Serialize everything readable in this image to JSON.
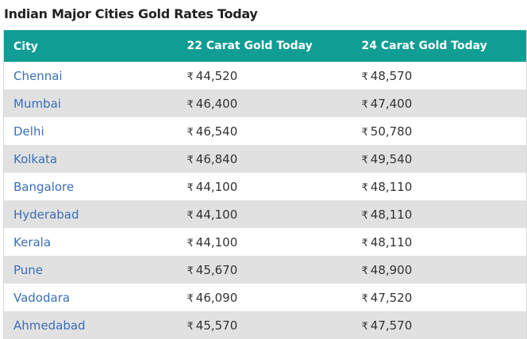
{
  "page": {
    "title": "Indian Major Cities Gold Rates Today"
  },
  "table": {
    "headers": {
      "city": "City",
      "k22": "22 Carat Gold Today",
      "k24": "24 Carat Gold Today"
    },
    "currency_symbol": "₹",
    "colors": {
      "header_bg": "#0f9d94",
      "header_text": "#ffffff",
      "city_link": "#3a6fb8",
      "stripe": "#e1e1e1"
    },
    "rows": [
      {
        "city": "Chennai",
        "k22": "44,520",
        "k24": "48,570"
      },
      {
        "city": "Mumbai",
        "k22": "46,400",
        "k24": "47,400"
      },
      {
        "city": "Delhi",
        "k22": "46,540",
        "k24": "50,780"
      },
      {
        "city": "Kolkata",
        "k22": "46,840",
        "k24": "49,540"
      },
      {
        "city": "Bangalore",
        "k22": "44,100",
        "k24": "48,110"
      },
      {
        "city": "Hyderabad",
        "k22": "44,100",
        "k24": "48,110"
      },
      {
        "city": "Kerala",
        "k22": "44,100",
        "k24": "48,110"
      },
      {
        "city": "Pune",
        "k22": "45,670",
        "k24": "48,900"
      },
      {
        "city": "Vadodara",
        "k22": "46,090",
        "k24": "47,520"
      },
      {
        "city": "Ahmedabad",
        "k22": "45,570",
        "k24": "47,570"
      }
    ]
  }
}
